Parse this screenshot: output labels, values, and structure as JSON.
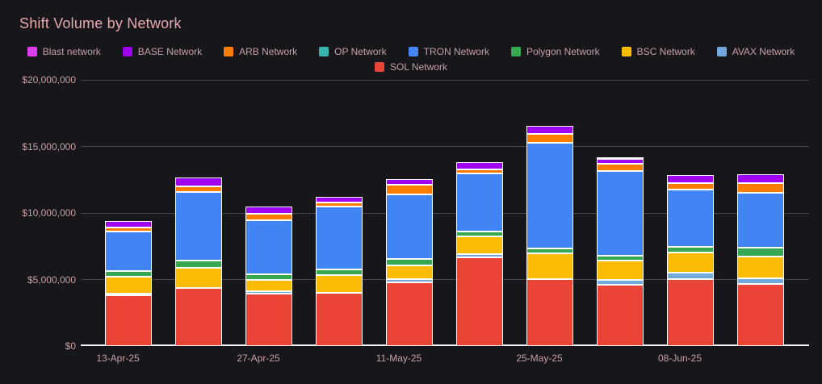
{
  "page": {
    "background_color": "#16161b",
    "text_color": "#c7a0a5",
    "title_color": "#e7a9ae",
    "gridline_color": "#45454b",
    "baseline_color": "#f5f5f5"
  },
  "header": {
    "title": "Shift Volume by Network"
  },
  "legend": {
    "items": [
      {
        "label": "Blast network",
        "color": "#dd3df2",
        "row": 1
      },
      {
        "label": "BASE Network",
        "color": "#a001f2",
        "row": 1
      },
      {
        "label": "ARB Network",
        "color": "#fe7d01",
        "row": 1
      },
      {
        "label": "OP Network",
        "color": "#35b5ac",
        "row": 1
      },
      {
        "label": "TRON Network",
        "color": "#4184f4",
        "row": 1
      },
      {
        "label": "Polygon Network",
        "color": "#36a852",
        "row": 1
      },
      {
        "label": "BSC Network",
        "color": "#fbbc05",
        "row": 1
      },
      {
        "label": "AVAX Network",
        "color": "#72a9dd",
        "row": 1
      },
      {
        "label": "SOL Network",
        "color": "#e94435",
        "row": 2
      }
    ]
  },
  "chart_data": {
    "type": "bar",
    "stacked": true,
    "title": "Shift Volume by Network",
    "xlabel": "",
    "ylabel": "",
    "ylim": [
      0,
      20000000
    ],
    "grid": true,
    "legend_position": "top",
    "categories": [
      "13-Apr-25",
      "",
      "27-Apr-25",
      "",
      "11-May-25",
      "",
      "25-May-25",
      "",
      "08-Jun-25",
      ""
    ],
    "x_ticks": [
      {
        "label": "13-Apr-25",
        "bar_index": 0
      },
      {
        "label": "27-Apr-25",
        "bar_index": 2
      },
      {
        "label": "11-May-25",
        "bar_index": 4
      },
      {
        "label": "25-May-25",
        "bar_index": 6
      },
      {
        "label": "08-Jun-25",
        "bar_index": 8
      }
    ],
    "y_ticks": [
      {
        "value": 0,
        "label": "$0"
      },
      {
        "value": 5000000,
        "label": "$5,000,000"
      },
      {
        "value": 10000000,
        "label": "$10,000,000"
      },
      {
        "value": 15000000,
        "label": "$15,000,000"
      },
      {
        "value": 20000000,
        "label": "$20,000,000"
      }
    ],
    "stack_order": "bottom-to-top",
    "series": [
      {
        "name": "SOL Network",
        "color": "#e94435",
        "values": [
          3790000,
          4340000,
          3960000,
          4000000,
          4790000,
          6660000,
          5010000,
          4580000,
          5050000,
          4680000
        ]
      },
      {
        "name": "AVAX Network",
        "color": "#72a9dd",
        "values": [
          150000,
          0,
          180000,
          0,
          260000,
          270000,
          0,
          410000,
          440000,
          420000
        ]
      },
      {
        "name": "BSC Network",
        "color": "#fbbc05",
        "values": [
          1250000,
          1520000,
          810000,
          1350000,
          1010000,
          1290000,
          1980000,
          1410000,
          1540000,
          1650000
        ]
      },
      {
        "name": "Polygon Network",
        "color": "#36a852",
        "values": [
          460000,
          540000,
          460000,
          410000,
          460000,
          360000,
          320000,
          360000,
          440000,
          670000
        ]
      },
      {
        "name": "TRON Network",
        "color": "#4184f4",
        "values": [
          2930000,
          5150000,
          4060000,
          4720000,
          4850000,
          4410000,
          7980000,
          6370000,
          4290000,
          4120000
        ]
      },
      {
        "name": "OP Network",
        "color": "#35b5ac",
        "values": [
          0,
          0,
          0,
          0,
          0,
          0,
          0,
          0,
          0,
          0
        ]
      },
      {
        "name": "ARB Network",
        "color": "#fe7d01",
        "values": [
          350000,
          430000,
          470000,
          330000,
          730000,
          280000,
          670000,
          570000,
          460000,
          730000
        ]
      },
      {
        "name": "BASE Network",
        "color": "#a001f2",
        "values": [
          480000,
          710000,
          540000,
          400000,
          450000,
          570000,
          600000,
          340000,
          630000,
          610000
        ]
      },
      {
        "name": "Blast network",
        "color": "#dd3df2",
        "values": [
          0,
          0,
          0,
          0,
          0,
          0,
          0,
          140000,
          0,
          0
        ]
      }
    ]
  }
}
